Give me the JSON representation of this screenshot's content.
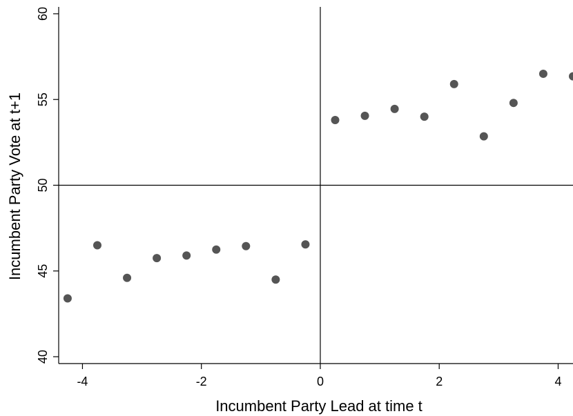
{
  "chart_data": {
    "type": "scatter",
    "title": "",
    "xlabel": "Incumbent Party Lead at time t",
    "ylabel": "Incumbent Party Vote at t+1",
    "xlim": [
      -4.4,
      4.25
    ],
    "ylim": [
      39.6,
      60.4
    ],
    "xticks": [
      -4,
      -2,
      0,
      2,
      4
    ],
    "xtick_labels": [
      "-4",
      "-2",
      "0",
      "2",
      "4"
    ],
    "yticks": [
      40,
      45,
      50,
      55,
      60
    ],
    "ytick_labels": [
      "40",
      "45",
      "50",
      "55",
      "60"
    ],
    "reference_lines": {
      "x": 0,
      "y": 50
    },
    "grid": false,
    "marker_color": "#555555",
    "points": [
      {
        "x": -4.25,
        "y": 43.4
      },
      {
        "x": -3.75,
        "y": 46.5
      },
      {
        "x": -3.25,
        "y": 44.6
      },
      {
        "x": -2.75,
        "y": 45.75
      },
      {
        "x": -2.25,
        "y": 45.9
      },
      {
        "x": -1.75,
        "y": 46.25
      },
      {
        "x": -1.25,
        "y": 46.45
      },
      {
        "x": -0.75,
        "y": 44.5
      },
      {
        "x": -0.25,
        "y": 46.55
      },
      {
        "x": 0.25,
        "y": 53.8
      },
      {
        "x": 0.75,
        "y": 54.05
      },
      {
        "x": 1.25,
        "y": 54.45
      },
      {
        "x": 1.75,
        "y": 54.0
      },
      {
        "x": 2.25,
        "y": 55.9
      },
      {
        "x": 2.75,
        "y": 52.85
      },
      {
        "x": 3.25,
        "y": 54.8
      },
      {
        "x": 3.75,
        "y": 56.5
      },
      {
        "x": 4.25,
        "y": 56.35
      }
    ]
  }
}
